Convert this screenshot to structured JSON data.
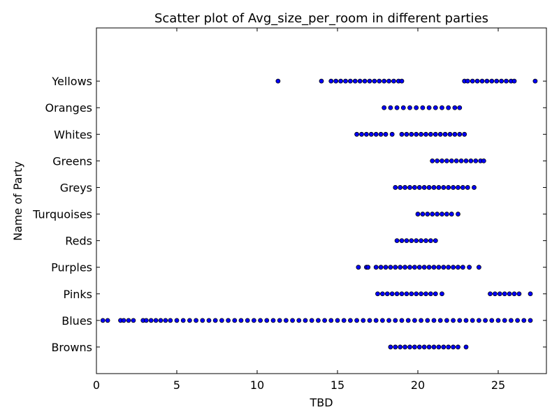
{
  "chart_data": {
    "type": "scatter",
    "title": "Scatter plot of Avg_size_per_room in different parties",
    "xlabel": "TBD",
    "ylabel": "Name of Party",
    "xlim": [
      0,
      28
    ],
    "xticks": [
      0,
      5,
      10,
      15,
      20,
      25
    ],
    "grid": false,
    "marker_color": "#0000ff",
    "marker_edge": "#000000",
    "categories": [
      "Browns",
      "Blues",
      "Pinks",
      "Purples",
      "Reds",
      "Turquoises",
      "Greys",
      "Greens",
      "Whites",
      "Oranges",
      "Yellows"
    ],
    "series": [
      {
        "category": "Yellows",
        "x": [
          11.3,
          14.0,
          14.6,
          14.9,
          15.2,
          15.5,
          15.8,
          16.1,
          16.4,
          16.7,
          17.0,
          17.3,
          17.6,
          17.9,
          18.2,
          18.5,
          18.8,
          19.0,
          22.9,
          23.1,
          23.4,
          23.7,
          24.0,
          24.3,
          24.6,
          24.9,
          25.2,
          25.5,
          25.8,
          26.0,
          27.3
        ]
      },
      {
        "category": "Oranges",
        "x": [
          17.9,
          18.3,
          18.7,
          19.1,
          19.5,
          19.9,
          20.3,
          20.7,
          21.1,
          21.5,
          21.9,
          22.3,
          22.6
        ]
      },
      {
        "category": "Whites",
        "x": [
          16.2,
          16.5,
          16.8,
          17.1,
          17.4,
          17.7,
          18.0,
          18.4,
          19.0,
          19.3,
          19.6,
          19.9,
          20.2,
          20.5,
          20.8,
          21.1,
          21.4,
          21.7,
          22.0,
          22.3,
          22.6,
          22.9
        ]
      },
      {
        "category": "Greens",
        "x": [
          20.9,
          21.2,
          21.5,
          21.8,
          22.1,
          22.4,
          22.7,
          23.0,
          23.3,
          23.6,
          23.9,
          24.1
        ]
      },
      {
        "category": "Greys",
        "x": [
          18.6,
          18.9,
          19.2,
          19.5,
          19.8,
          20.1,
          20.4,
          20.7,
          21.0,
          21.3,
          21.6,
          21.9,
          22.2,
          22.5,
          22.8,
          23.1,
          23.5
        ]
      },
      {
        "category": "Turquoises",
        "x": [
          20.0,
          20.3,
          20.6,
          20.9,
          21.2,
          21.5,
          21.8,
          22.1,
          22.5
        ]
      },
      {
        "category": "Reds",
        "x": [
          18.7,
          19.0,
          19.3,
          19.6,
          19.9,
          20.2,
          20.5,
          20.8,
          21.1
        ]
      },
      {
        "category": "Purples",
        "x": [
          16.3,
          16.8,
          16.9,
          17.4,
          17.7,
          18.0,
          18.3,
          18.6,
          18.9,
          19.2,
          19.5,
          19.8,
          20.1,
          20.4,
          20.7,
          21.0,
          21.3,
          21.6,
          21.9,
          22.2,
          22.5,
          22.8,
          23.2,
          23.8
        ]
      },
      {
        "category": "Pinks",
        "x": [
          17.5,
          17.8,
          18.1,
          18.4,
          18.7,
          19.0,
          19.3,
          19.6,
          19.9,
          20.2,
          20.5,
          20.8,
          21.1,
          21.5,
          24.5,
          24.8,
          25.1,
          25.4,
          25.7,
          26.0,
          26.3,
          27.0
        ]
      },
      {
        "category": "Blues",
        "x": [
          0.4,
          0.7,
          1.5,
          1.7,
          2.0,
          2.3,
          2.9,
          3.1,
          3.4,
          3.7,
          4.0,
          4.3,
          4.6,
          5.0,
          5.4,
          5.8,
          6.2,
          6.6,
          7.0,
          7.4,
          7.8,
          8.2,
          8.6,
          9.0,
          9.4,
          9.8,
          10.2,
          10.6,
          11.0,
          11.4,
          11.8,
          12.2,
          12.6,
          13.0,
          13.4,
          13.8,
          14.2,
          14.6,
          15.0,
          15.4,
          15.8,
          16.2,
          16.6,
          17.0,
          17.4,
          17.8,
          18.2,
          18.6,
          19.0,
          19.4,
          19.8,
          20.2,
          20.6,
          21.0,
          21.4,
          21.8,
          22.2,
          22.6,
          23.0,
          23.4,
          23.8,
          24.2,
          24.6,
          25.0,
          25.4,
          25.8,
          26.2,
          26.6,
          27.0
        ]
      },
      {
        "category": "Browns",
        "x": [
          18.3,
          18.6,
          18.9,
          19.2,
          19.5,
          19.8,
          20.1,
          20.4,
          20.7,
          21.0,
          21.3,
          21.6,
          21.9,
          22.2,
          22.5,
          23.0
        ]
      }
    ]
  }
}
